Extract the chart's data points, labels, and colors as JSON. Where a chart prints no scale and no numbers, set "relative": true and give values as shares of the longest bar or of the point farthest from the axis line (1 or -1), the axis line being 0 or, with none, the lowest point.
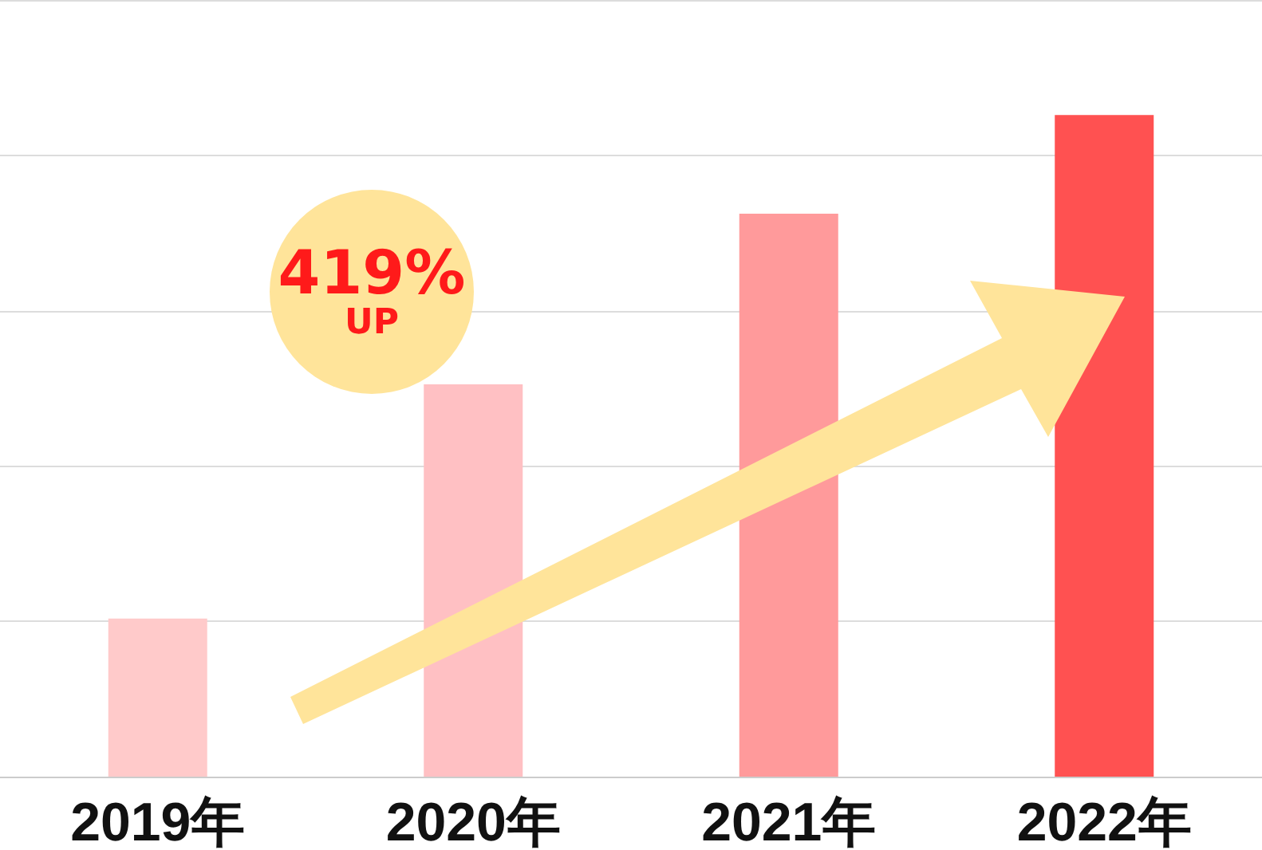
{
  "chart_data": {
    "type": "bar",
    "relative": true,
    "categories": [
      "2019年",
      "2020年",
      "2021年",
      "2022年"
    ],
    "values": [
      0.239,
      0.593,
      0.851,
      1
    ],
    "colors": [
      "#ffcaca",
      "#ffc0c3",
      "#ff9a9b",
      "#ff5151"
    ],
    "grid": "y",
    "annotations": [
      "419%",
      "UP"
    ]
  }
}
